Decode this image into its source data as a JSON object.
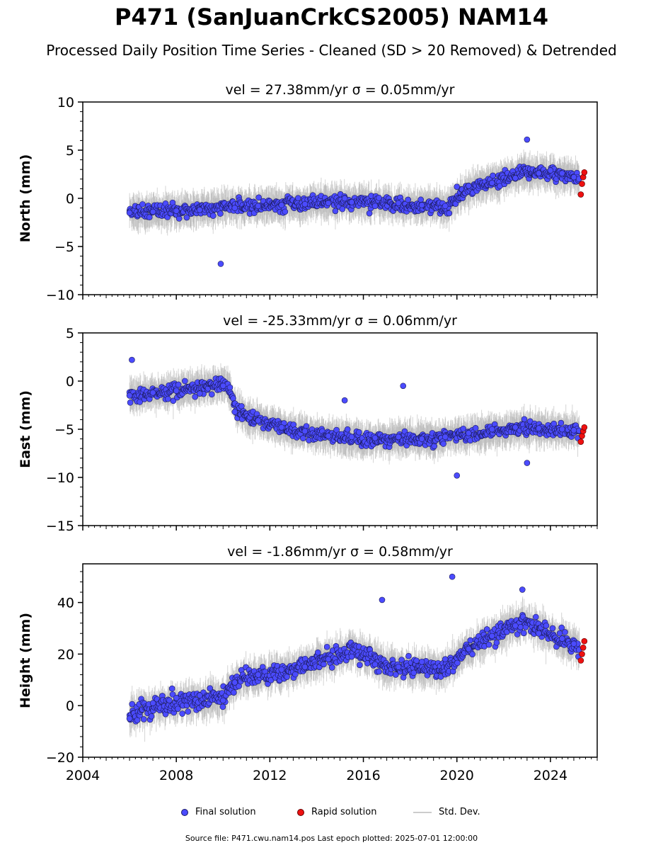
{
  "title": "P471 (SanJuanCrkCS2005) NAM14",
  "subtitle": "Processed Daily Position Time Series - Cleaned (SD > 20 Removed) & Detrended",
  "footer": "Source file: P471.cwu.nam14.pos  Last epoch plotted: 2025-07-01 12:00:00",
  "legend": {
    "final": "Final solution",
    "rapid": "Rapid solution",
    "std": "Std. Dev."
  },
  "colors": {
    "final": "#4B4BFF",
    "rapid": "#EE1111",
    "std": "#B0B0B0"
  },
  "chart_data": [
    {
      "type": "scatter",
      "title": "vel = 27.38mm/yr   σ = 0.05mm/yr",
      "ylabel": "North (mm)",
      "xlim": [
        2004,
        2026
      ],
      "ylim": [
        -10,
        10
      ],
      "yticks": [
        -10,
        -5,
        0,
        5,
        10
      ],
      "xticks": [
        2004,
        2008,
        2012,
        2016,
        2020,
        2024
      ],
      "show_xtick_labels": false,
      "series": [
        {
          "name": "Final solution",
          "x": [
            2006.0,
            2007.0,
            2008.0,
            2009.0,
            2009.9,
            2010.5,
            2011.5,
            2012.5,
            2013.5,
            2014.5,
            2015.2,
            2015.5,
            2016.5,
            2017.5,
            2018.5,
            2019.5,
            2020.0,
            2020.5,
            2021.5,
            2022.5,
            2023.0,
            2023.5,
            2024.0,
            2024.5,
            2025.0
          ],
          "y": [
            -1.5,
            -1.4,
            -1.3,
            -1.2,
            -6.8,
            -1.0,
            -0.8,
            -0.7,
            -0.6,
            -0.5,
            0.0,
            -0.4,
            -0.8,
            -0.5,
            -0.7,
            -0.8,
            1.2,
            1.3,
            1.6,
            2.1,
            6.1,
            2.6,
            2.9,
            2.6,
            2.2
          ]
        },
        {
          "name": "Rapid solution",
          "x": [
            2025.3,
            2025.35,
            2025.4,
            2025.45
          ],
          "y": [
            0.4,
            1.5,
            2.2,
            2.7
          ]
        }
      ]
    },
    {
      "type": "scatter",
      "title": "vel = -25.33mm/yr   σ = 0.06mm/yr",
      "ylabel": "East (mm)",
      "xlim": [
        2004,
        2026
      ],
      "ylim": [
        -15,
        5
      ],
      "yticks": [
        -15,
        -10,
        -5,
        0,
        5
      ],
      "xticks": [
        2004,
        2008,
        2012,
        2016,
        2020,
        2024
      ],
      "show_xtick_labels": false,
      "series": [
        {
          "name": "Final solution",
          "x": [
            2006.0,
            2006.1,
            2007.0,
            2008.0,
            2009.0,
            2010.0,
            2010.5,
            2011.5,
            2012.5,
            2013.5,
            2014.5,
            2015.2,
            2015.5,
            2016.5,
            2017.5,
            2017.7,
            2018.5,
            2019.5,
            2020.0,
            2020.5,
            2021.5,
            2022.5,
            2023.0,
            2023.5,
            2024.5,
            2025.0
          ],
          "y": [
            -1.5,
            2.2,
            -1.2,
            -1.0,
            -1.3,
            -0.5,
            -3.2,
            -4.1,
            -4.8,
            -5.2,
            -5.7,
            -2.0,
            -5.8,
            -5.9,
            -5.8,
            -0.5,
            -6.0,
            -5.8,
            -9.8,
            -5.4,
            -5.0,
            -4.8,
            -8.5,
            -4.9,
            -5.0,
            -5.1
          ]
        },
        {
          "name": "Rapid solution",
          "x": [
            2025.3,
            2025.35,
            2025.4,
            2025.45
          ],
          "y": [
            -6.3,
            -5.7,
            -5.2,
            -4.8
          ]
        }
      ]
    },
    {
      "type": "scatter",
      "title": "vel = -1.86mm/yr   σ = 0.58mm/yr",
      "ylabel": "Height (mm)",
      "xlim": [
        2004,
        2026
      ],
      "ylim": [
        -20,
        55
      ],
      "yticks": [
        -20,
        0,
        20,
        40
      ],
      "xticks": [
        2004,
        2008,
        2012,
        2016,
        2020,
        2024
      ],
      "show_xtick_labels": true,
      "series": [
        {
          "name": "Final solution",
          "x": [
            2006.0,
            2007.0,
            2008.0,
            2009.0,
            2010.0,
            2010.5,
            2011.5,
            2012.5,
            2013.5,
            2014.5,
            2015.5,
            2016.5,
            2016.8,
            2017.5,
            2018.5,
            2019.5,
            2019.8,
            2020.5,
            2021.5,
            2022.5,
            2022.8,
            2023.5,
            2024.5,
            2025.0
          ],
          "y": [
            -5,
            1,
            3,
            4,
            2,
            9,
            12,
            14,
            15,
            18,
            19,
            16,
            41,
            15,
            17,
            18,
            50,
            22,
            27,
            31,
            45,
            28,
            26,
            24
          ]
        },
        {
          "name": "Rapid solution",
          "x": [
            2025.3,
            2025.35,
            2025.4,
            2025.45
          ],
          "y": [
            17.5,
            20,
            22.5,
            25
          ]
        }
      ]
    }
  ]
}
